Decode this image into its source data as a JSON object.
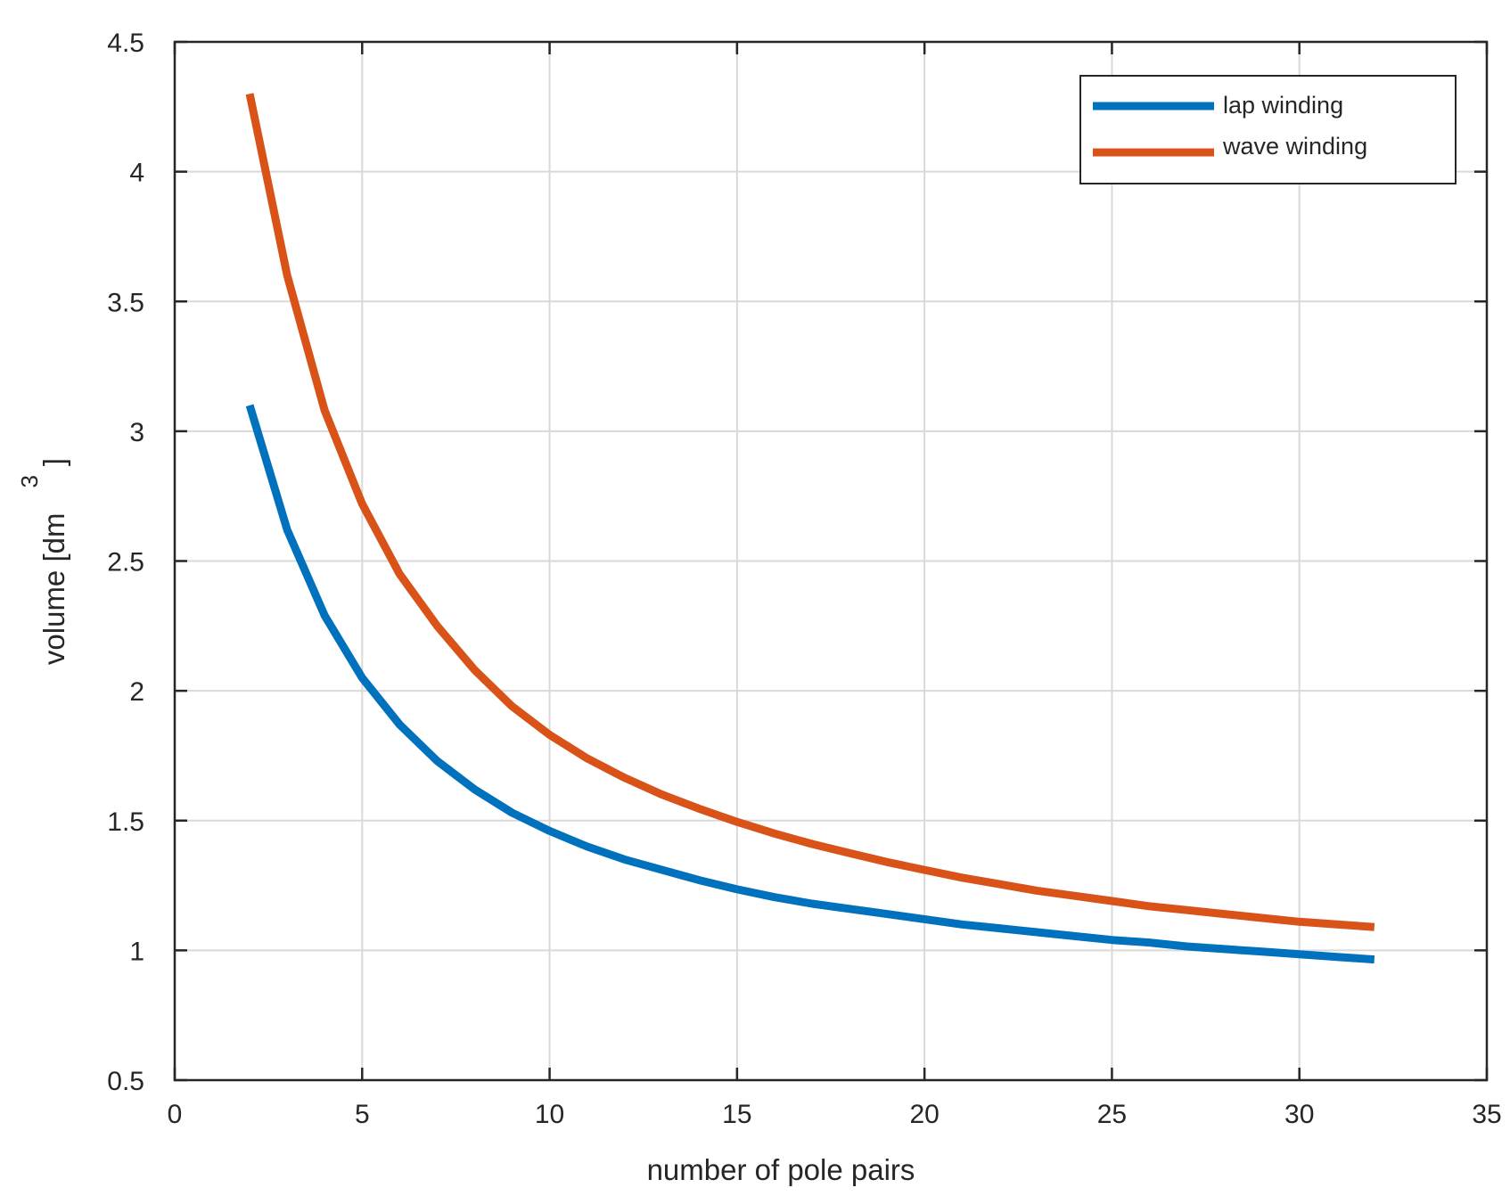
{
  "chart_data": {
    "type": "line",
    "xlabel": "number of pole pairs",
    "ylabel": "volume [dm",
    "ylabel_superscript": "3",
    "ylabel_suffix": "]",
    "xlim": [
      0,
      35
    ],
    "ylim": [
      0.5,
      4.5
    ],
    "xticks": [
      0,
      5,
      10,
      15,
      20,
      25,
      30,
      35
    ],
    "yticks": [
      0.5,
      1,
      1.5,
      2,
      2.5,
      3,
      3.5,
      4,
      4.5
    ],
    "xtick_labels": [
      "0",
      "5",
      "10",
      "15",
      "20",
      "25",
      "30",
      "35"
    ],
    "ytick_labels": [
      "0.5",
      "1",
      "1.5",
      "2",
      "2.5",
      "3",
      "3.5",
      "4",
      "4.5"
    ],
    "grid": true,
    "legend_position": "top-right",
    "x": [
      2,
      3,
      4,
      5,
      6,
      7,
      8,
      9,
      10,
      11,
      12,
      13,
      14,
      15,
      16,
      17,
      18,
      19,
      20,
      21,
      22,
      23,
      24,
      25,
      26,
      27,
      28,
      29,
      30,
      31,
      32
    ],
    "series": [
      {
        "name": "lap winding",
        "color": "#0072BD",
        "values": [
          3.1,
          2.62,
          2.29,
          2.05,
          1.87,
          1.73,
          1.62,
          1.53,
          1.46,
          1.4,
          1.35,
          1.31,
          1.27,
          1.235,
          1.205,
          1.18,
          1.16,
          1.14,
          1.12,
          1.1,
          1.085,
          1.07,
          1.055,
          1.04,
          1.03,
          1.015,
          1.005,
          0.995,
          0.985,
          0.975,
          0.965
        ]
      },
      {
        "name": "wave winding",
        "color": "#D95319",
        "values": [
          4.3,
          3.6,
          3.08,
          2.72,
          2.45,
          2.25,
          2.08,
          1.94,
          1.83,
          1.74,
          1.665,
          1.6,
          1.545,
          1.495,
          1.45,
          1.41,
          1.375,
          1.34,
          1.31,
          1.28,
          1.255,
          1.23,
          1.21,
          1.19,
          1.17,
          1.155,
          1.14,
          1.125,
          1.11,
          1.1,
          1.09
        ]
      }
    ]
  }
}
